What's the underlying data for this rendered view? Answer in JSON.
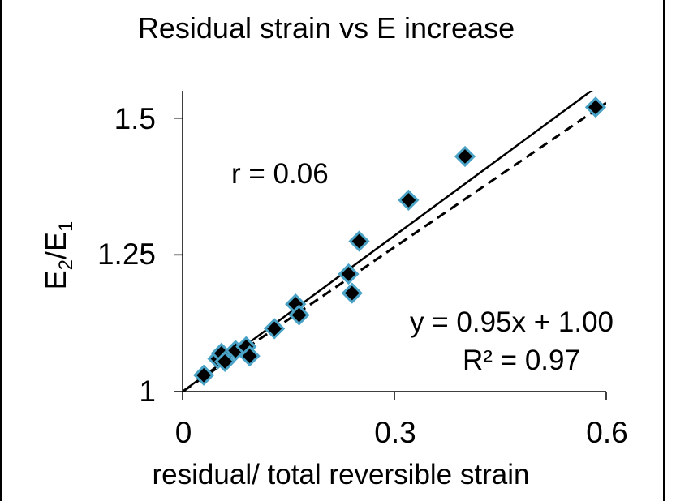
{
  "chart_data": {
    "type": "scatter",
    "title": "Residual strain vs E increase",
    "xlabel": "residual/ total reversible strain",
    "ylabel_main": "E",
    "ylabel_sub1": "2",
    "ylabel_sep": "/E",
    "ylabel_sub2": "1",
    "xlim": [
      0,
      0.6
    ],
    "ylim": [
      1,
      1.55
    ],
    "xticks": [
      "0",
      "0.3",
      "0.6"
    ],
    "yticks": [
      "1",
      "1.25",
      "1.5"
    ],
    "grid": false,
    "points": {
      "x": [
        0.03,
        0.05,
        0.055,
        0.06,
        0.075,
        0.09,
        0.095,
        0.13,
        0.16,
        0.165,
        0.235,
        0.24,
        0.25,
        0.32,
        0.4,
        0.585
      ],
      "y": [
        1.03,
        1.06,
        1.07,
        1.055,
        1.075,
        1.082,
        1.065,
        1.115,
        1.16,
        1.14,
        1.215,
        1.18,
        1.275,
        1.35,
        1.43,
        1.52
      ]
    },
    "marker_fill": "#000000",
    "marker_edge": "#4aa3c7",
    "lines": [
      {
        "style": "solid",
        "slope": 0.95,
        "intercept": 1.0
      },
      {
        "style": "dashed",
        "slope": 0.88,
        "intercept": 1.0
      }
    ],
    "annotations": {
      "r": "r = 0.06",
      "equation": "y = 0.95x + 1.00",
      "r2": "R² = 0.97"
    }
  }
}
